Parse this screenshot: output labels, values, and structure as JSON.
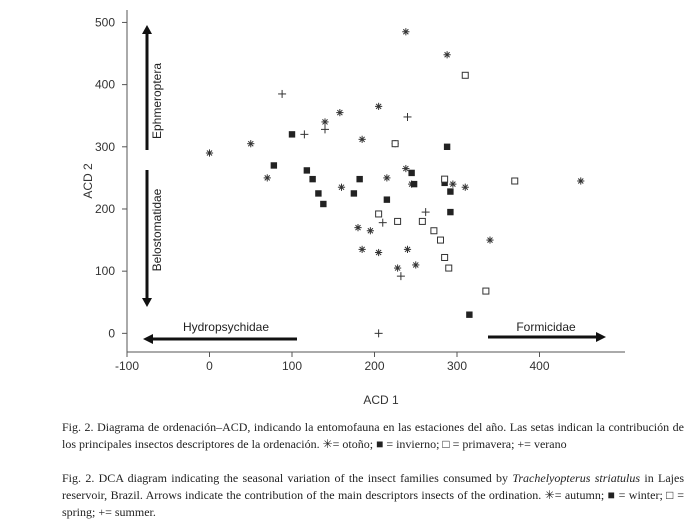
{
  "chart_data": {
    "type": "scatter",
    "xlabel": "ACD 1",
    "ylabel": "ACD 2",
    "xlim": [
      -100,
      500
    ],
    "ylim": [
      -30,
      520
    ],
    "xticks": [
      -100,
      0,
      100,
      200,
      300,
      400
    ],
    "yticks": [
      0,
      100,
      200,
      300,
      400,
      500
    ],
    "grid": false,
    "series": [
      {
        "name": "otoño",
        "marker": "asterisk",
        "points": [
          [
            0,
            290
          ],
          [
            50,
            305
          ],
          [
            70,
            250
          ],
          [
            140,
            340
          ],
          [
            158,
            355
          ],
          [
            205,
            365
          ],
          [
            238,
            485
          ],
          [
            288,
            448
          ],
          [
            185,
            312
          ],
          [
            160,
            235
          ],
          [
            180,
            170
          ],
          [
            185,
            135
          ],
          [
            205,
            130
          ],
          [
            195,
            165
          ],
          [
            215,
            250
          ],
          [
            225,
            305
          ],
          [
            238,
            265
          ],
          [
            245,
            240
          ],
          [
            250,
            110
          ],
          [
            240,
            135
          ],
          [
            228,
            105
          ],
          [
            295,
            240
          ],
          [
            310,
            235
          ],
          [
            340,
            150
          ],
          [
            450,
            245
          ]
        ]
      },
      {
        "name": "invierno",
        "marker": "filled-square",
        "points": [
          [
            78,
            270
          ],
          [
            100,
            320
          ],
          [
            118,
            262
          ],
          [
            125,
            248
          ],
          [
            132,
            225
          ],
          [
            138,
            208
          ],
          [
            175,
            225
          ],
          [
            182,
            248
          ],
          [
            215,
            215
          ],
          [
            245,
            258
          ],
          [
            248,
            240
          ],
          [
            285,
            242
          ],
          [
            288,
            300
          ],
          [
            292,
            228
          ],
          [
            292,
            195
          ],
          [
            315,
            30
          ]
        ]
      },
      {
        "name": "primavera",
        "marker": "open-square",
        "points": [
          [
            225,
            305
          ],
          [
            205,
            192
          ],
          [
            228,
            180
          ],
          [
            258,
            180
          ],
          [
            272,
            165
          ],
          [
            280,
            150
          ],
          [
            285,
            122
          ],
          [
            290,
            105
          ],
          [
            285,
            248
          ],
          [
            310,
            415
          ],
          [
            335,
            68
          ],
          [
            370,
            245
          ]
        ]
      },
      {
        "name": "verano",
        "marker": "plus",
        "points": [
          [
            88,
            385
          ],
          [
            115,
            320
          ],
          [
            140,
            328
          ],
          [
            240,
            348
          ],
          [
            205,
            0
          ],
          [
            210,
            178
          ],
          [
            232,
            92
          ],
          [
            262,
            195
          ]
        ]
      }
    ],
    "arrows": [
      {
        "label": "Ephmeroptera",
        "direction": "up"
      },
      {
        "label": "Belostomatidae",
        "direction": "down"
      },
      {
        "label": "Hydropsychidae",
        "direction": "left"
      },
      {
        "label": "Formicidae",
        "direction": "right"
      }
    ]
  },
  "caption": {
    "spanish": "Fig. 2. Diagrama de ordenación–ACD, indicando la entomofauna en las estaciones del año. Las setas indican la contribución de los principales insectos descriptores de la ordenación. ✳= otoño; ■ = invierno; □ = primavera; += verano",
    "english_lead": "Fig. 2. DCA diagram indicating the seasonal variation of the insect families consumed by ",
    "english_species": "Trachelyopterus striatulus",
    "english_tail": " in Lajes reservoir, Brazil. Arrows indicate the contribution of the main descriptors insects of the ordination. ✳= autumn; ■ = winter; □ = spring; += summer."
  }
}
